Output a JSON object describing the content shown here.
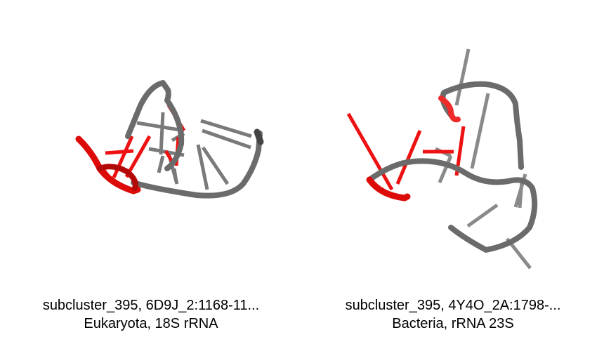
{
  "panels": [
    {
      "caption_line1": "subcluster_395, 6D9J_2:1168-11...",
      "caption_line2": "Eukaryota, 18S rRNA"
    },
    {
      "caption_line1": "subcluster_395, 4Y4O_2A:1798-...",
      "caption_line2": "Bacteria, rRNA 23S"
    }
  ],
  "colors": {
    "backbone": "#6b6b6b",
    "highlight": "#ee1111",
    "background": "#ffffff"
  }
}
